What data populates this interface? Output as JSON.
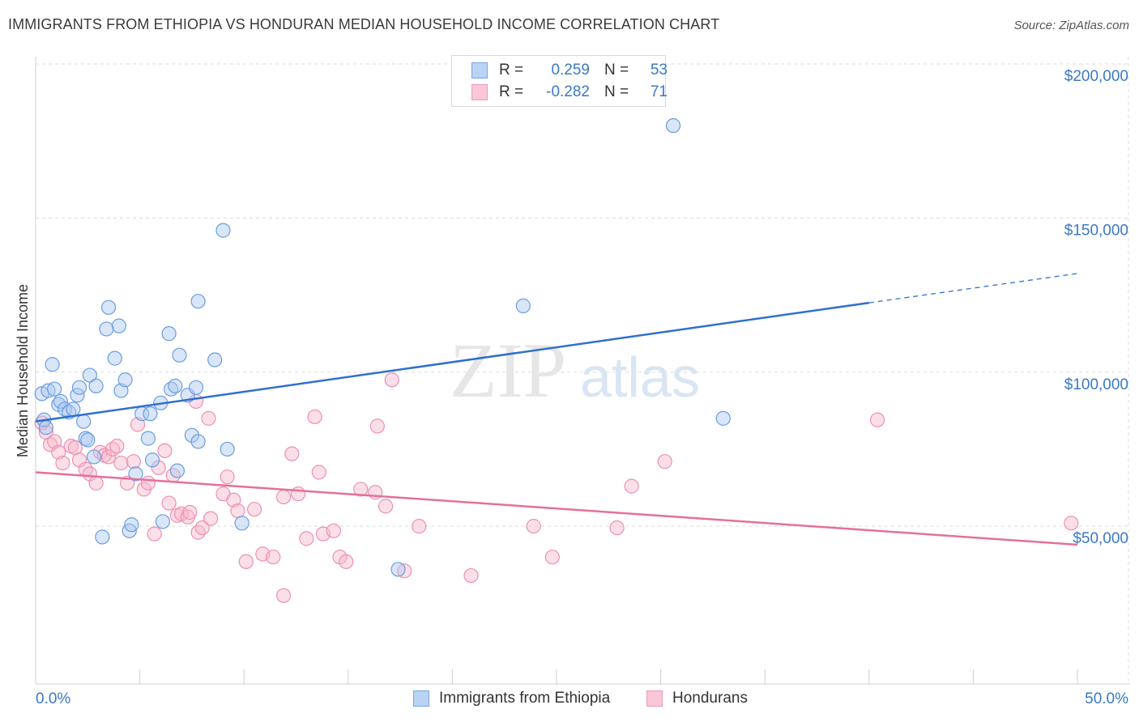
{
  "header": {
    "title": "IMMIGRANTS FROM ETHIOPIA VS HONDURAN MEDIAN HOUSEHOLD INCOME CORRELATION CHART",
    "source": "Source: ZipAtlas.com"
  },
  "watermark": {
    "zip": "ZIP",
    "atlas": "atlas"
  },
  "legend": {
    "r_label": "R =",
    "n_label": "N =",
    "rows": [
      {
        "r": "0.259",
        "n": "53",
        "fill": "#b9d3f5",
        "stroke": "#7aa6e0"
      },
      {
        "r": "-0.282",
        "n": "71",
        "fill": "#f9c7d7",
        "stroke": "#ee9ab7"
      }
    ]
  },
  "bottom_legend": [
    {
      "label": "Immigrants from Ethiopia",
      "fill": "#b9d3f5",
      "stroke": "#7aa6e0"
    },
    {
      "label": "Hondurans",
      "fill": "#f9c7d7",
      "stroke": "#ee9ab7"
    }
  ],
  "colors": {
    "series1_fill": "rgba(170,200,240,0.45)",
    "series1_stroke": "#6a9de0",
    "series1_line": "#2f6fcf",
    "series2_fill": "rgba(247,185,205,0.45)",
    "series2_stroke": "#ee8fb2",
    "series2_line": "#e4709a",
    "tick_label": "#3a78c9",
    "grid": "#dcdcdc"
  },
  "chart_data": {
    "type": "scatter",
    "ylabel": "Median Household Income",
    "xlim": [
      0,
      50
    ],
    "ylim": [
      0,
      205000
    ],
    "x_tick_labels": [
      "0.0%",
      "50.0%"
    ],
    "y_ticks": [
      {
        "value": 50000,
        "label": "$50,000"
      },
      {
        "value": 100000,
        "label": "$100,000"
      },
      {
        "value": 150000,
        "label": "$150,000"
      },
      {
        "value": 200000,
        "label": "$200,000"
      }
    ],
    "grid": true,
    "series": [
      {
        "name": "Immigrants from Ethiopia",
        "trend": {
          "x0": 0,
          "y0": 84000,
          "x1": 40,
          "y1": 122500,
          "dash_to_x": 50,
          "dash_to_y": 132000
        },
        "points": [
          [
            0.3,
            93000
          ],
          [
            0.4,
            84500
          ],
          [
            0.5,
            82000
          ],
          [
            0.6,
            94000
          ],
          [
            0.8,
            102500
          ],
          [
            0.9,
            94500
          ],
          [
            1.1,
            89500
          ],
          [
            1.2,
            90500
          ],
          [
            1.4,
            88000
          ],
          [
            1.6,
            87000
          ],
          [
            1.8,
            88000
          ],
          [
            2.0,
            92500
          ],
          [
            2.1,
            95000
          ],
          [
            2.3,
            84000
          ],
          [
            2.4,
            78500
          ],
          [
            2.5,
            78000
          ],
          [
            2.6,
            99000
          ],
          [
            2.8,
            72500
          ],
          [
            2.9,
            95500
          ],
          [
            3.4,
            114000
          ],
          [
            3.5,
            121000
          ],
          [
            3.8,
            104500
          ],
          [
            4.0,
            115000
          ],
          [
            4.1,
            94000
          ],
          [
            4.3,
            97500
          ],
          [
            4.5,
            48500
          ],
          [
            4.6,
            50500
          ],
          [
            4.8,
            67000
          ],
          [
            5.1,
            86500
          ],
          [
            5.4,
            78500
          ],
          [
            5.5,
            86500
          ],
          [
            5.6,
            71500
          ],
          [
            6.0,
            90000
          ],
          [
            6.1,
            51500
          ],
          [
            6.4,
            112500
          ],
          [
            6.5,
            94500
          ],
          [
            6.7,
            95500
          ],
          [
            6.8,
            68000
          ],
          [
            6.9,
            105500
          ],
          [
            7.3,
            92500
          ],
          [
            7.5,
            79500
          ],
          [
            7.7,
            95000
          ],
          [
            7.8,
            77500
          ],
          [
            7.8,
            123000
          ],
          [
            8.6,
            104000
          ],
          [
            9.0,
            146000
          ],
          [
            9.2,
            75000
          ],
          [
            9.9,
            51000
          ],
          [
            17.4,
            36000
          ],
          [
            23.4,
            121500
          ],
          [
            30.6,
            180000
          ],
          [
            33.0,
            85000
          ],
          [
            3.2,
            46500
          ]
        ]
      },
      {
        "name": "Hondurans",
        "trend": {
          "x0": 0,
          "y0": 67500,
          "x1": 50,
          "y1": 44000
        },
        "points": [
          [
            0.3,
            83500
          ],
          [
            0.5,
            80500
          ],
          [
            0.7,
            76500
          ],
          [
            0.9,
            77500
          ],
          [
            1.1,
            74000
          ],
          [
            1.3,
            70500
          ],
          [
            1.7,
            76000
          ],
          [
            1.9,
            75500
          ],
          [
            2.1,
            71500
          ],
          [
            2.4,
            68500
          ],
          [
            2.6,
            67000
          ],
          [
            2.9,
            64000
          ],
          [
            3.1,
            74000
          ],
          [
            3.3,
            73000
          ],
          [
            3.5,
            72500
          ],
          [
            3.7,
            75000
          ],
          [
            3.9,
            76000
          ],
          [
            4.1,
            70500
          ],
          [
            4.4,
            64000
          ],
          [
            4.7,
            71000
          ],
          [
            4.9,
            83000
          ],
          [
            5.2,
            62000
          ],
          [
            5.4,
            64000
          ],
          [
            5.7,
            47500
          ],
          [
            5.9,
            69000
          ],
          [
            6.2,
            74500
          ],
          [
            6.4,
            57500
          ],
          [
            6.6,
            66500
          ],
          [
            6.8,
            53500
          ],
          [
            7.0,
            54000
          ],
          [
            7.3,
            53000
          ],
          [
            7.4,
            54500
          ],
          [
            7.7,
            90500
          ],
          [
            7.8,
            48000
          ],
          [
            8.0,
            49500
          ],
          [
            8.3,
            85000
          ],
          [
            8.4,
            52500
          ],
          [
            9.0,
            60500
          ],
          [
            9.2,
            66000
          ],
          [
            9.5,
            58500
          ],
          [
            9.7,
            55000
          ],
          [
            10.1,
            38500
          ],
          [
            10.5,
            55500
          ],
          [
            10.9,
            41000
          ],
          [
            11.4,
            40000
          ],
          [
            11.9,
            59500
          ],
          [
            11.9,
            27500
          ],
          [
            12.3,
            73500
          ],
          [
            12.6,
            60500
          ],
          [
            13.0,
            46000
          ],
          [
            13.4,
            85500
          ],
          [
            13.6,
            67500
          ],
          [
            13.8,
            47500
          ],
          [
            14.3,
            48500
          ],
          [
            14.6,
            40000
          ],
          [
            14.9,
            38500
          ],
          [
            15.6,
            62000
          ],
          [
            16.3,
            61000
          ],
          [
            16.4,
            82500
          ],
          [
            16.8,
            56500
          ],
          [
            17.1,
            97500
          ],
          [
            17.7,
            35500
          ],
          [
            18.4,
            50000
          ],
          [
            20.9,
            34000
          ],
          [
            23.9,
            50000
          ],
          [
            24.8,
            40000
          ],
          [
            27.9,
            49500
          ],
          [
            28.6,
            63000
          ],
          [
            30.2,
            71000
          ],
          [
            40.4,
            84500
          ],
          [
            49.7,
            51000
          ]
        ]
      }
    ]
  }
}
